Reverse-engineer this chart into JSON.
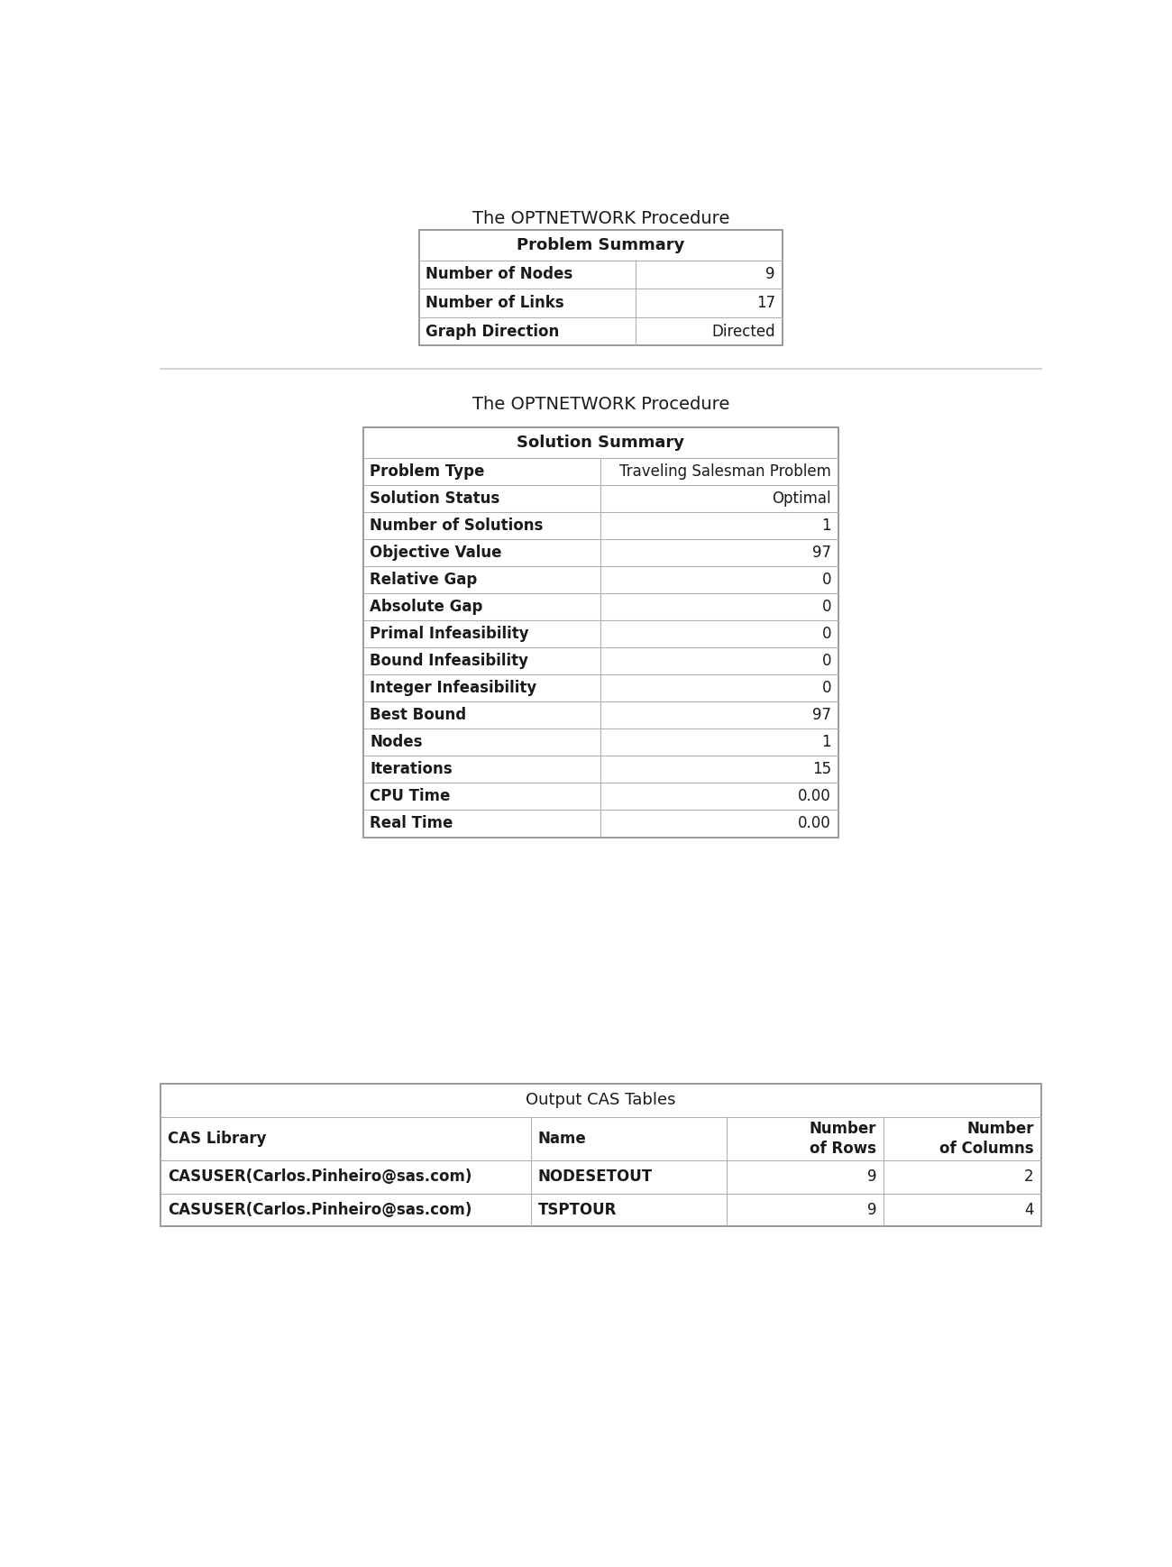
{
  "background_color": "#ffffff",
  "title1": "The OPTNETWORK Procedure",
  "title2": "The OPTNETWORK Procedure",
  "table1_title": "Problem Summary",
  "table1_rows": [
    [
      "Number of Nodes",
      "9"
    ],
    [
      "Number of Links",
      "17"
    ],
    [
      "Graph Direction",
      "Directed"
    ]
  ],
  "table2_title": "Solution Summary",
  "table2_rows": [
    [
      "Problem Type",
      "Traveling Salesman Problem"
    ],
    [
      "Solution Status",
      "Optimal"
    ],
    [
      "Number of Solutions",
      "1"
    ],
    [
      "Objective Value",
      "97"
    ],
    [
      "Relative Gap",
      "0"
    ],
    [
      "Absolute Gap",
      "0"
    ],
    [
      "Primal Infeasibility",
      "0"
    ],
    [
      "Bound Infeasibility",
      "0"
    ],
    [
      "Integer Infeasibility",
      "0"
    ],
    [
      "Best Bound",
      "97"
    ],
    [
      "Nodes",
      "1"
    ],
    [
      "Iterations",
      "15"
    ],
    [
      "CPU Time",
      "0.00"
    ],
    [
      "Real Time",
      "0.00"
    ]
  ],
  "table3_title": "Output CAS Tables",
  "table3_col_headers": [
    "CAS Library",
    "Name",
    "Number\nof Rows",
    "Number\nof Columns"
  ],
  "table3_rows": [
    [
      "CASUSER(Carlos.Pinheiro@sas.com)",
      "NODESETOUT",
      "9",
      "2"
    ],
    [
      "CASUSER(Carlos.Pinheiro@sas.com)",
      "TSPTOUR",
      "9",
      "4"
    ]
  ],
  "title_fontsize": 14,
  "table_fontsize": 12,
  "header_fontsize": 13,
  "bold_color": "#1a1a1a",
  "line_color": "#b0b0b0",
  "border_color": "#999999",
  "sep_line_color": "#cccccc"
}
